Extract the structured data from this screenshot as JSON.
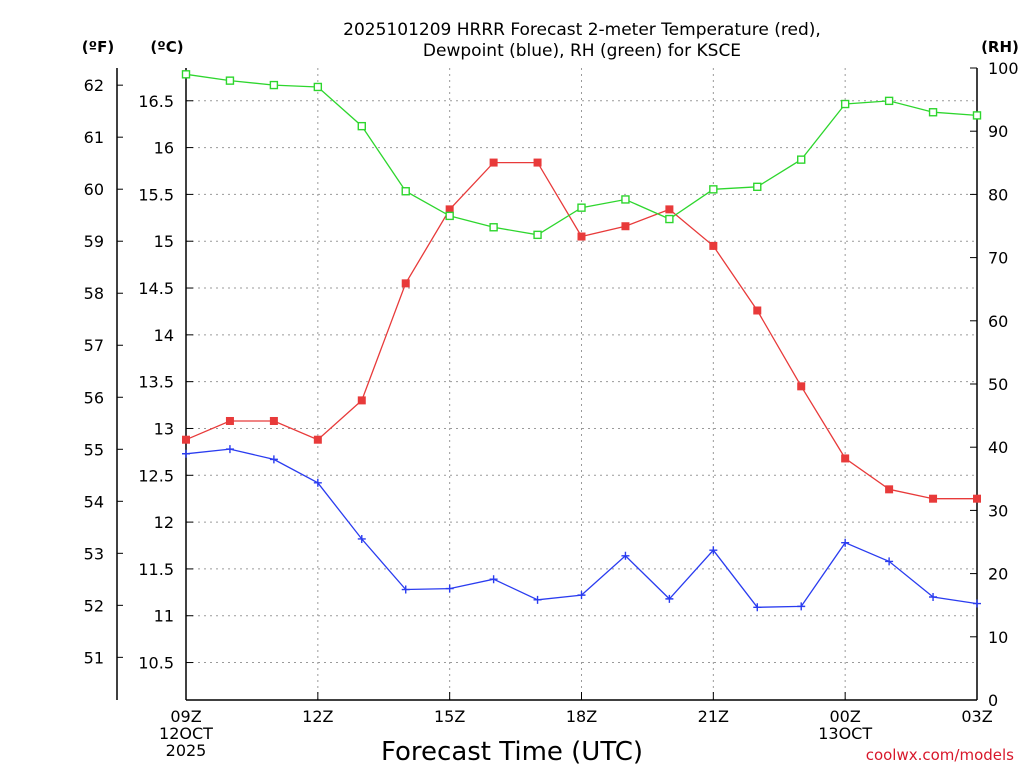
{
  "chart_data": {
    "type": "line",
    "title_line1": "2025101209 HRRR Forecast 2-meter Temperature (red),",
    "title_line2": "Dewpoint (blue), RH (green) for KSCE",
    "xlabel": "Forecast Time (UTC)",
    "credit": "coolwx.com/models",
    "units": {
      "fahrenheit": "(ºF)",
      "celsius": "(ºC)",
      "rh": "(RH)"
    },
    "x_hours": [
      0,
      1,
      2,
      3,
      4,
      5,
      6,
      7,
      8,
      9,
      10,
      11,
      12,
      13,
      14,
      15,
      16,
      17,
      18
    ],
    "x_ticks": [
      {
        "hour": 0,
        "lines": [
          "09Z",
          "12OCT",
          "2025"
        ]
      },
      {
        "hour": 3,
        "lines": [
          "12Z"
        ]
      },
      {
        "hour": 6,
        "lines": [
          "15Z"
        ]
      },
      {
        "hour": 9,
        "lines": [
          "18Z"
        ]
      },
      {
        "hour": 12,
        "lines": [
          "21Z"
        ]
      },
      {
        "hour": 15,
        "lines": [
          "00Z",
          "13OCT"
        ]
      },
      {
        "hour": 18,
        "lines": [
          "03Z"
        ]
      }
    ],
    "celsius_axis": {
      "min": 10.1,
      "max": 16.85,
      "ticks": [
        "10.5",
        "11",
        "11.5",
        "12",
        "12.5",
        "13",
        "13.5",
        "14",
        "14.5",
        "15",
        "15.5",
        "16",
        "16.5"
      ]
    },
    "fahrenheit_ticks": [
      "51",
      "52",
      "53",
      "54",
      "55",
      "56",
      "57",
      "58",
      "59",
      "60",
      "61",
      "62"
    ],
    "rh_axis": {
      "min": 0,
      "max": 100,
      "ticks": [
        "0",
        "10",
        "20",
        "30",
        "40",
        "50",
        "60",
        "70",
        "80",
        "90",
        "100"
      ]
    },
    "grid": true,
    "series": [
      {
        "key": "temperature",
        "color": "#e83a3a",
        "marker": "filled-square",
        "axis": "celsius",
        "values": [
          12.88,
          13.08,
          13.08,
          12.88,
          13.3,
          14.55,
          15.34,
          15.84,
          15.84,
          15.05,
          15.16,
          15.34,
          14.95,
          14.26,
          13.45,
          12.68,
          12.35,
          12.25,
          12.25
        ]
      },
      {
        "key": "dewpoint",
        "color": "#2a3cf0",
        "marker": "plus",
        "axis": "celsius",
        "values": [
          12.73,
          12.78,
          12.67,
          12.42,
          11.82,
          11.28,
          11.29,
          11.39,
          11.17,
          11.22,
          11.64,
          11.18,
          11.7,
          11.09,
          11.1,
          11.78,
          11.58,
          11.2,
          11.13
        ]
      },
      {
        "key": "rh",
        "color": "#2ed62e",
        "marker": "open-square",
        "axis": "rh",
        "values": [
          99,
          98,
          97.3,
          97,
          90.8,
          80.5,
          76.6,
          74.8,
          73.6,
          77.9,
          79.2,
          76.1,
          80.8,
          81.2,
          85.5,
          94.3,
          94.8,
          93,
          92.5
        ]
      }
    ]
  }
}
